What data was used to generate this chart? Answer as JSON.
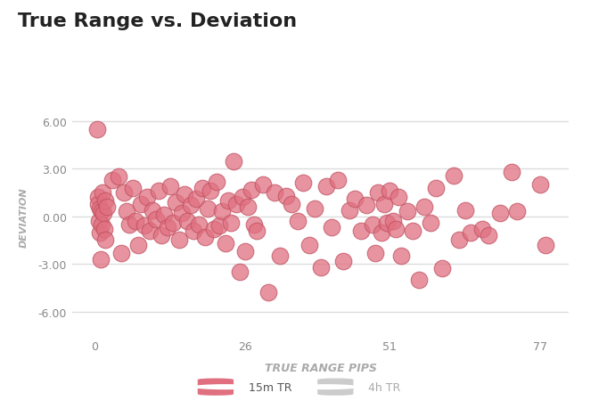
{
  "title": "True Range vs. Deviation",
  "xlabel": "TRUE RANGE PIPS",
  "ylabel": "DEVIATION",
  "xlim": [
    -4,
    82
  ],
  "ylim": [
    -7.5,
    7.5
  ],
  "xticks": [
    0,
    26,
    51,
    77
  ],
  "yticks": [
    -6.0,
    -3.0,
    0.0,
    3.0,
    6.0
  ],
  "scatter_color": "#e07080",
  "scatter_edge": "#c05060",
  "bg_color": "#ffffff",
  "grid_color": "#dddddd",
  "points": [
    [
      0.3,
      5.5
    ],
    [
      0.5,
      1.2
    ],
    [
      0.6,
      0.8
    ],
    [
      0.7,
      -0.3
    ],
    [
      0.8,
      -1.0
    ],
    [
      0.9,
      0.5
    ],
    [
      1.0,
      -2.7
    ],
    [
      1.1,
      0.3
    ],
    [
      1.2,
      -0.5
    ],
    [
      1.3,
      1.5
    ],
    [
      1.5,
      0.2
    ],
    [
      1.6,
      -0.8
    ],
    [
      1.7,
      1.0
    ],
    [
      1.8,
      -1.5
    ],
    [
      2.0,
      0.6
    ],
    [
      3.0,
      2.3
    ],
    [
      4.0,
      2.5
    ],
    [
      4.5,
      -2.3
    ],
    [
      5.0,
      1.5
    ],
    [
      5.5,
      0.3
    ],
    [
      6.0,
      -0.5
    ],
    [
      6.5,
      1.8
    ],
    [
      7.0,
      -0.3
    ],
    [
      7.5,
      -1.8
    ],
    [
      8.0,
      0.8
    ],
    [
      8.5,
      -0.6
    ],
    [
      9.0,
      1.2
    ],
    [
      9.5,
      -0.9
    ],
    [
      10.0,
      0.4
    ],
    [
      10.5,
      -0.2
    ],
    [
      11.0,
      1.6
    ],
    [
      11.5,
      -1.2
    ],
    [
      12.0,
      0.1
    ],
    [
      12.5,
      -0.7
    ],
    [
      13.0,
      1.9
    ],
    [
      13.5,
      -0.4
    ],
    [
      14.0,
      0.9
    ],
    [
      14.5,
      -1.5
    ],
    [
      15.0,
      0.2
    ],
    [
      15.5,
      1.4
    ],
    [
      16.0,
      -0.3
    ],
    [
      16.5,
      0.7
    ],
    [
      17.0,
      -0.9
    ],
    [
      17.5,
      1.1
    ],
    [
      18.0,
      -0.5
    ],
    [
      18.5,
      1.8
    ],
    [
      19.0,
      -1.3
    ],
    [
      19.5,
      0.5
    ],
    [
      20.0,
      1.6
    ],
    [
      20.5,
      -0.8
    ],
    [
      21.0,
      2.2
    ],
    [
      21.5,
      -0.6
    ],
    [
      22.0,
      0.3
    ],
    [
      22.5,
      -1.7
    ],
    [
      23.0,
      1.0
    ],
    [
      23.5,
      -0.4
    ],
    [
      24.0,
      3.5
    ],
    [
      24.5,
      0.8
    ],
    [
      25.0,
      -3.5
    ],
    [
      25.5,
      1.2
    ],
    [
      26.0,
      -2.2
    ],
    [
      26.5,
      0.6
    ],
    [
      27.0,
      1.7
    ],
    [
      27.5,
      -0.5
    ],
    [
      28.0,
      -0.9
    ],
    [
      29.0,
      2.0
    ],
    [
      30.0,
      -4.8
    ],
    [
      31.0,
      1.5
    ],
    [
      32.0,
      -2.5
    ],
    [
      33.0,
      1.3
    ],
    [
      34.0,
      0.8
    ],
    [
      35.0,
      -0.3
    ],
    [
      36.0,
      2.1
    ],
    [
      37.0,
      -1.8
    ],
    [
      38.0,
      0.5
    ],
    [
      39.0,
      -3.2
    ],
    [
      40.0,
      1.9
    ],
    [
      41.0,
      -0.7
    ],
    [
      42.0,
      2.3
    ],
    [
      43.0,
      -2.8
    ],
    [
      44.0,
      0.4
    ],
    [
      45.0,
      1.1
    ],
    [
      46.0,
      -0.9
    ],
    [
      47.0,
      0.7
    ],
    [
      48.0,
      -0.5
    ],
    [
      48.5,
      -2.3
    ],
    [
      49.0,
      1.5
    ],
    [
      49.5,
      -1.0
    ],
    [
      50.0,
      0.8
    ],
    [
      50.5,
      -0.4
    ],
    [
      51.0,
      1.6
    ],
    [
      51.5,
      -0.3
    ],
    [
      52.0,
      -0.8
    ],
    [
      52.5,
      1.2
    ],
    [
      53.0,
      -2.5
    ],
    [
      54.0,
      0.3
    ],
    [
      55.0,
      -0.9
    ],
    [
      56.0,
      -4.0
    ],
    [
      57.0,
      0.6
    ],
    [
      58.0,
      -0.4
    ],
    [
      59.0,
      1.8
    ],
    [
      60.0,
      -3.3
    ],
    [
      62.0,
      2.6
    ],
    [
      63.0,
      -1.5
    ],
    [
      64.0,
      0.4
    ],
    [
      65.0,
      -1.0
    ],
    [
      67.0,
      -0.8
    ],
    [
      68.0,
      -1.2
    ],
    [
      70.0,
      0.2
    ],
    [
      72.0,
      2.8
    ],
    [
      73.0,
      0.3
    ],
    [
      77.0,
      2.0
    ],
    [
      78.0,
      -1.8
    ]
  ]
}
